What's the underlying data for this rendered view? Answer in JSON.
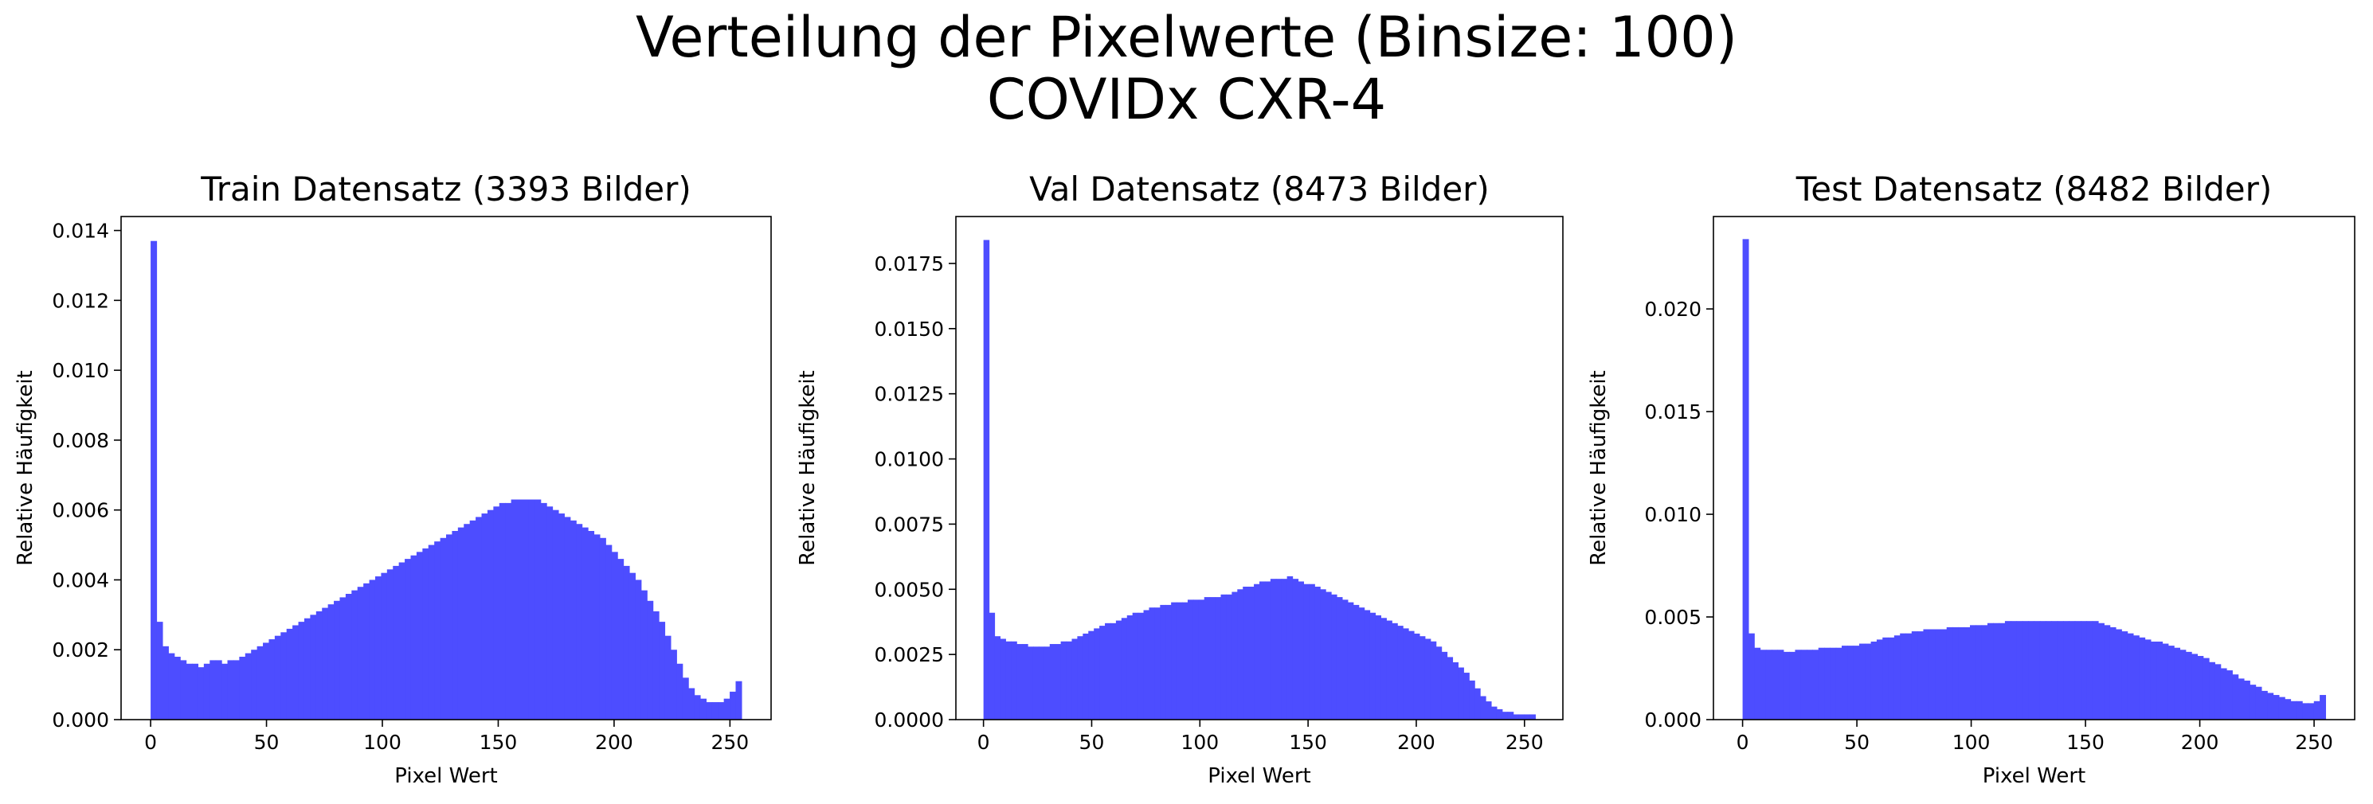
{
  "figure": {
    "title_line1": "Verteilung der Pixelwerte (Binsize: 100)",
    "title_line2": "COVIDx CXR-4"
  },
  "colors": {
    "bar": "#4d4dff",
    "axis": "#000000"
  },
  "chart_data": [
    {
      "type": "bar",
      "title": "Train Datensatz (3393 Bilder)",
      "xlabel": "Pixel Wert",
      "ylabel": "Relative Häufigkeit",
      "xlim": [
        -12.75,
        267.75
      ],
      "ylim": [
        0,
        0.0144
      ],
      "xticks": [
        0,
        50,
        100,
        150,
        200,
        250
      ],
      "yticks": [
        0.0,
        0.002,
        0.004,
        0.006,
        0.008,
        0.01,
        0.012,
        0.014
      ],
      "ytick_decimals": 3,
      "bin_range": [
        0,
        255
      ],
      "bins": 100,
      "values": [
        0.0137,
        0.0028,
        0.0021,
        0.0019,
        0.0018,
        0.0017,
        0.0016,
        0.0016,
        0.0015,
        0.0016,
        0.0017,
        0.0017,
        0.0016,
        0.0017,
        0.0017,
        0.0018,
        0.0019,
        0.002,
        0.0021,
        0.0022,
        0.0023,
        0.0024,
        0.0025,
        0.0026,
        0.0027,
        0.0028,
        0.0029,
        0.003,
        0.0031,
        0.0032,
        0.0033,
        0.0034,
        0.0035,
        0.0036,
        0.0037,
        0.0038,
        0.0039,
        0.004,
        0.0041,
        0.0042,
        0.0043,
        0.0044,
        0.0045,
        0.0046,
        0.0047,
        0.0048,
        0.0049,
        0.005,
        0.0051,
        0.0052,
        0.0053,
        0.0054,
        0.0055,
        0.0056,
        0.0057,
        0.0058,
        0.0059,
        0.006,
        0.0061,
        0.0062,
        0.0062,
        0.0063,
        0.0063,
        0.0063,
        0.0063,
        0.0063,
        0.0062,
        0.0061,
        0.006,
        0.0059,
        0.0058,
        0.0057,
        0.0056,
        0.0055,
        0.0054,
        0.0053,
        0.0052,
        0.005,
        0.0048,
        0.0046,
        0.0044,
        0.0042,
        0.004,
        0.0037,
        0.0034,
        0.0031,
        0.0028,
        0.0024,
        0.002,
        0.0016,
        0.0012,
        0.0009,
        0.0007,
        0.0006,
        0.0005,
        0.0005,
        0.0005,
        0.0006,
        0.0008,
        0.0011
      ]
    },
    {
      "type": "bar",
      "title": "Val Datensatz (8473 Bilder)",
      "xlabel": "Pixel Wert",
      "ylabel": "Relative Häufigkeit",
      "xlim": [
        -12.75,
        267.75
      ],
      "ylim": [
        0,
        0.0193
      ],
      "xticks": [
        0,
        50,
        100,
        150,
        200,
        250
      ],
      "yticks": [
        0.0,
        0.0025,
        0.005,
        0.0075,
        0.01,
        0.0125,
        0.015,
        0.0175
      ],
      "ytick_decimals": 4,
      "bin_range": [
        0,
        255
      ],
      "bins": 100,
      "values": [
        0.0184,
        0.0041,
        0.0032,
        0.0031,
        0.003,
        0.003,
        0.0029,
        0.0029,
        0.0028,
        0.0028,
        0.0028,
        0.0028,
        0.0029,
        0.0029,
        0.003,
        0.003,
        0.0031,
        0.0032,
        0.0033,
        0.0034,
        0.0035,
        0.0036,
        0.0037,
        0.0037,
        0.0038,
        0.0039,
        0.004,
        0.0041,
        0.0041,
        0.0042,
        0.0043,
        0.0043,
        0.0044,
        0.0044,
        0.0045,
        0.0045,
        0.0045,
        0.0046,
        0.0046,
        0.0046,
        0.0047,
        0.0047,
        0.0047,
        0.0048,
        0.0048,
        0.0049,
        0.005,
        0.0051,
        0.0051,
        0.0052,
        0.0053,
        0.0053,
        0.0054,
        0.0054,
        0.0054,
        0.0055,
        0.0054,
        0.0053,
        0.0052,
        0.0052,
        0.0051,
        0.005,
        0.0049,
        0.0048,
        0.0047,
        0.0046,
        0.0045,
        0.0044,
        0.0043,
        0.0042,
        0.0041,
        0.004,
        0.0039,
        0.0038,
        0.0037,
        0.0036,
        0.0035,
        0.0034,
        0.0033,
        0.0032,
        0.0031,
        0.003,
        0.0028,
        0.0026,
        0.0024,
        0.0022,
        0.002,
        0.0018,
        0.0015,
        0.0012,
        0.0009,
        0.0007,
        0.0005,
        0.0004,
        0.0003,
        0.0003,
        0.0002,
        0.0002,
        0.0002,
        0.0002
      ]
    },
    {
      "type": "bar",
      "title": "Test Datensatz (8482 Bilder)",
      "xlabel": "Pixel Wert",
      "ylabel": "Relative Häufigkeit",
      "xlim": [
        -12.75,
        267.75
      ],
      "ylim": [
        0,
        0.0245
      ],
      "xticks": [
        0,
        50,
        100,
        150,
        200,
        250
      ],
      "yticks": [
        0.0,
        0.005,
        0.01,
        0.015,
        0.02
      ],
      "ytick_decimals": 3,
      "bin_range": [
        0,
        255
      ],
      "bins": 100,
      "values": [
        0.0234,
        0.0042,
        0.0035,
        0.0034,
        0.0034,
        0.0034,
        0.0034,
        0.0033,
        0.0033,
        0.0034,
        0.0034,
        0.0034,
        0.0034,
        0.0035,
        0.0035,
        0.0035,
        0.0035,
        0.0036,
        0.0036,
        0.0036,
        0.0037,
        0.0037,
        0.0038,
        0.0039,
        0.004,
        0.004,
        0.0041,
        0.0042,
        0.0042,
        0.0043,
        0.0043,
        0.0044,
        0.0044,
        0.0044,
        0.0044,
        0.0045,
        0.0045,
        0.0045,
        0.0045,
        0.0046,
        0.0046,
        0.0046,
        0.0047,
        0.0047,
        0.0047,
        0.0048,
        0.0048,
        0.0048,
        0.0048,
        0.0048,
        0.0048,
        0.0048,
        0.0048,
        0.0048,
        0.0048,
        0.0048,
        0.0048,
        0.0048,
        0.0048,
        0.0048,
        0.0048,
        0.0047,
        0.0046,
        0.0045,
        0.0044,
        0.0043,
        0.0042,
        0.0041,
        0.004,
        0.0039,
        0.0038,
        0.0038,
        0.0037,
        0.0036,
        0.0035,
        0.0034,
        0.0033,
        0.0032,
        0.0031,
        0.003,
        0.0028,
        0.0027,
        0.0025,
        0.0024,
        0.0022,
        0.002,
        0.0019,
        0.0017,
        0.0016,
        0.0014,
        0.0013,
        0.0012,
        0.0011,
        0.001,
        0.0009,
        0.0009,
        0.0008,
        0.0008,
        0.0009,
        0.0012
      ]
    }
  ]
}
